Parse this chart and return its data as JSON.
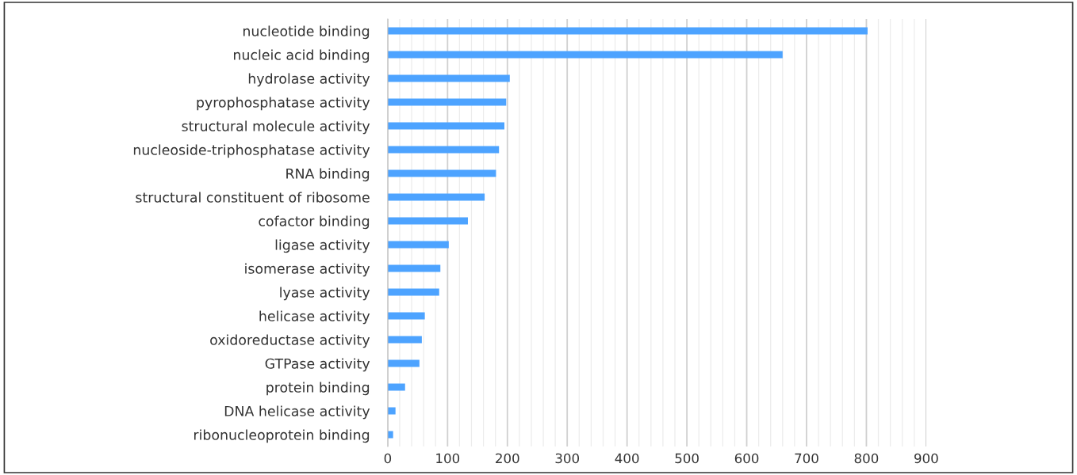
{
  "chart_data": {
    "type": "bar",
    "orientation": "horizontal",
    "categories": [
      "nucleotide binding",
      "nucleic acid binding",
      "hydrolase activity",
      "pyrophosphatase activity",
      "structural molecule activity",
      "nucleoside-triphosphatase activity",
      "RNA binding",
      "structural constituent of ribosome",
      "cofactor binding",
      "ligase activity",
      "isomerase activity",
      "lyase activity",
      "helicase activity",
      "oxidoreductase activity",
      "GTPase activity",
      "protein binding",
      "DNA helicase activity",
      "ribonucleoprotein binding"
    ],
    "values": [
      802,
      660,
      204,
      198,
      195,
      186,
      181,
      162,
      134,
      102,
      88,
      86,
      62,
      57,
      53,
      29,
      13,
      9
    ],
    "color": "#4da3ff",
    "xlim": [
      0,
      900
    ],
    "xticks": [
      0,
      {
        "value": 20,
        "label": null
      },
      {
        "value": 40,
        "label": null
      },
      {
        "value": 60,
        "label": null
      },
      {
        "value": 80,
        "label": null
      },
      100,
      {
        "value": 120,
        "label": null
      },
      {
        "value": 140,
        "label": null
      },
      {
        "value": 160,
        "label": null
      },
      {
        "value": 180,
        "label": null
      },
      200,
      {
        "value": 220,
        "label": null
      },
      {
        "value": 240,
        "label": null
      },
      {
        "value": 260,
        "label": null
      },
      {
        "value": 280,
        "label": null
      },
      300,
      {
        "value": 320,
        "label": null
      },
      {
        "value": 340,
        "label": null
      },
      {
        "value": 360,
        "label": null
      },
      {
        "value": 380,
        "label": null
      },
      400,
      {
        "value": 420,
        "label": null
      },
      {
        "value": 440,
        "label": null
      },
      {
        "value": 460,
        "label": null
      },
      {
        "value": 480,
        "label": null
      },
      500,
      {
        "value": 520,
        "label": null
      },
      {
        "value": 540,
        "label": null
      },
      {
        "value": 560,
        "label": null
      },
      {
        "value": 580,
        "label": null
      },
      600,
      {
        "value": 620,
        "label": null
      },
      {
        "value": 640,
        "label": null
      },
      {
        "value": 660,
        "label": null
      },
      {
        "value": 680,
        "label": null
      },
      700,
      {
        "value": 720,
        "label": null
      },
      {
        "value": 740,
        "label": null
      },
      {
        "value": 760,
        "label": null
      },
      {
        "value": 780,
        "label": null
      },
      800,
      {
        "value": 820,
        "label": null
      },
      {
        "value": 840,
        "label": null
      },
      {
        "value": 860,
        "label": null
      },
      {
        "value": 880,
        "label": null
      },
      900
    ],
    "grid": "x"
  }
}
